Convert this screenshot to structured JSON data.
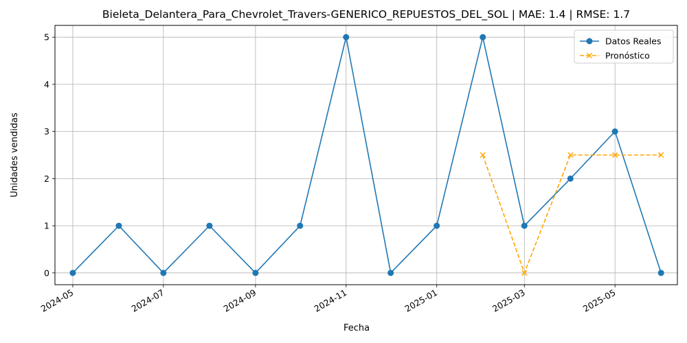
{
  "chart_data": {
    "type": "line",
    "title": "Bieleta_Delantera_Para_Chevrolet_Travers-GENERICO_REPUESTOS_DEL_SOL | MAE: 1.4 | RMSE: 1.7",
    "xlabel": "Fecha",
    "ylabel": "Unidades vendidas",
    "x_ticks": [
      "2024-05",
      "2024-07",
      "2024-09",
      "2024-11",
      "2025-01",
      "2025-03",
      "2025-05"
    ],
    "y_ticks": [
      "0",
      "1",
      "2",
      "3",
      "4",
      "5"
    ],
    "xlim": [
      "2024-04-19",
      "2025-06-12"
    ],
    "ylim": [
      -0.25,
      5.25
    ],
    "grid": true,
    "legend_position": "top-right",
    "series": [
      {
        "name": "Datos Reales",
        "color": "#1f77b4",
        "marker": "circle",
        "line_style": "solid",
        "points": [
          {
            "date": "2024-05-01",
            "value": 0
          },
          {
            "date": "2024-06-01",
            "value": 1
          },
          {
            "date": "2024-07-01",
            "value": 0
          },
          {
            "date": "2024-08-01",
            "value": 1
          },
          {
            "date": "2024-09-01",
            "value": 0
          },
          {
            "date": "2024-10-01",
            "value": 1
          },
          {
            "date": "2024-11-01",
            "value": 5
          },
          {
            "date": "2024-12-01",
            "value": 0
          },
          {
            "date": "2025-01-01",
            "value": 1
          },
          {
            "date": "2025-02-01",
            "value": 5
          },
          {
            "date": "2025-03-01",
            "value": 1
          },
          {
            "date": "2025-04-01",
            "value": 2
          },
          {
            "date": "2025-05-01",
            "value": 3
          },
          {
            "date": "2025-06-01",
            "value": 0
          }
        ]
      },
      {
        "name": "Pronóstico",
        "color": "#ffa500",
        "marker": "x",
        "line_style": "dashed",
        "points": [
          {
            "date": "2025-02-01",
            "value": 2.5
          },
          {
            "date": "2025-03-01",
            "value": 0
          },
          {
            "date": "2025-04-01",
            "value": 2.5
          },
          {
            "date": "2025-05-01",
            "value": 2.5
          },
          {
            "date": "2025-06-01",
            "value": 2.5
          }
        ]
      }
    ]
  }
}
